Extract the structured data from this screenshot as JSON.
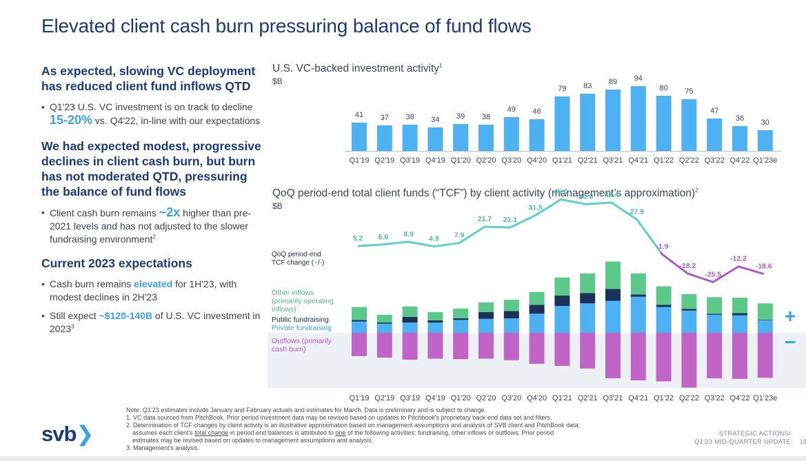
{
  "page": {
    "title": "Elevated client cash burn pressuring balance of fund flows"
  },
  "left": {
    "section1_heading": "As expected, slowing VC deployment has reduced client fund inflows QTD",
    "section1_bullet_a": "Q1'23 U.S. VC investment is on track to decline ",
    "section1_bullet_em": "15-20%",
    "section1_bullet_b": " vs. Q4'22, in-line with our expectations",
    "section2_heading": "We had expected modest, progressive declines in client cash burn, but burn has not moderated QTD, pressuring the balance of fund flows",
    "section2_bullet_a": "Client cash burn remains ",
    "section2_bullet_em": "~2x",
    "section2_bullet_b": " higher than pre-2021 levels and has not adjusted to the slower fundraising environment",
    "section2_bullet_sup": "2",
    "section3_heading": "Current 2023 expectations",
    "section3_bullet1_a": "Cash burn remains ",
    "section3_bullet1_em": "elevated",
    "section3_bullet1_b": " for 1H'23, with modest declines in 2H'23",
    "section3_bullet2_a": "Still expect ",
    "section3_bullet2_em": "~$120-140B",
    "section3_bullet2_b": " of U.S. VC investment in 2023",
    "section3_bullet2_sup": "3"
  },
  "chart_data": [
    {
      "type": "bar",
      "title": "U.S. VC-backed investment activity",
      "title_sup": "1",
      "unit": "$B",
      "categories": [
        "Q1'19",
        "Q2'19",
        "Q3'19",
        "Q4'19",
        "Q1'20",
        "Q2'20",
        "Q3'20",
        "Q4'20",
        "Q1'21",
        "Q2'21",
        "Q3'21",
        "Q4'21",
        "Q1'22",
        "Q2'22",
        "Q3'22",
        "Q4'22",
        "Q1'23e"
      ],
      "values": [
        41,
        37,
        38,
        34,
        39,
        38,
        49,
        46,
        79,
        83,
        89,
        94,
        80,
        75,
        47,
        36,
        30
      ],
      "ylim": [
        0,
        100
      ],
      "color": "#4db1f2"
    },
    {
      "type": "bar",
      "stacked": true,
      "title": "QoQ period-end total client funds (“TCF”) by client activity (management’s approximation)",
      "title_sup": "2",
      "unit": "$B",
      "categories": [
        "Q1'19",
        "Q2'19",
        "Q3'19",
        "Q4'19",
        "Q1'20",
        "Q2'20",
        "Q3'20",
        "Q4'20",
        "Q1'21",
        "Q2'21",
        "Q3'21",
        "Q4'21",
        "Q1'22",
        "Q2'22",
        "Q3'22",
        "Q4'22",
        "Q1'23e"
      ],
      "series": [
        {
          "name": "Private fundraising",
          "values": [
            22,
            18,
            20,
            20,
            25,
            27,
            28,
            37,
            52,
            57,
            62,
            70,
            50,
            43,
            35,
            34,
            24
          ],
          "color": "#4db1f2"
        },
        {
          "name": "Public fundraising",
          "values": [
            3,
            2,
            11,
            4,
            3,
            13,
            14,
            17,
            20,
            20,
            23,
            4,
            4,
            3,
            2,
            4,
            1
          ],
          "color": "#1b3157"
        },
        {
          "name": "Other inflows (primarily operating inflows)",
          "values": [
            25,
            15,
            20,
            16,
            19,
            19,
            22,
            25,
            35,
            38,
            53,
            41,
            36,
            29,
            32,
            30,
            32
          ],
          "color": "#5cc98a"
        },
        {
          "name": "Outflows (primarily cash burn)",
          "values": [
            -45,
            -48,
            -52,
            -50,
            -51,
            -50,
            -53,
            -60,
            -64,
            -69,
            -88,
            -92,
            -94,
            -106,
            -88,
            -89,
            -87
          ],
          "color": "#c065c7"
        }
      ],
      "line": {
        "name": "QoQ period-end TCF change (+/-)",
        "legend_prefix": "QoQ period-end TCF change (",
        "legend_plus": "+",
        "legend_sep": "/",
        "legend_minus": "-",
        "legend_suffix": ")",
        "values": [
          5.2,
          6.6,
          8.9,
          4.9,
          7.9,
          21.7,
          21.1,
          31.5,
          45.0,
          41.0,
          42.4,
          27.9,
          -1.9,
          -18.2,
          -25.5,
          -12.2,
          -18.6
        ],
        "labels": [
          "5.2",
          "6.6",
          "8.9",
          "4.9",
          "7.9",
          "21.7",
          "21.1",
          "31.5",
          "45.0",
          "41.0",
          "42.4",
          "27.9",
          "-1.9",
          "-18.2",
          "-25.5",
          "-12.2",
          "-18.6"
        ],
        "positive_color": "#5ccfcf",
        "negative_color": "#b05ac6"
      },
      "legend": {
        "other_inflows": "Other inflows (primarily operating inflows)",
        "public": "Public fundraising",
        "private": "Private fundraising",
        "outflows": "Outflows (primarily cash burn)",
        "plus": "+",
        "minus": "−"
      }
    }
  ],
  "footnotes": {
    "line1": "Note: Q1'23 estimates include January and February actuals and estimates for March. Data is preliminary and is subject to change.",
    "line2": "1. VC data sourced from PitchBook. Prior period investment data may be revised based on updates to Pitchbook's proprietary back-end data set and filters.",
    "line3": "2. Determination of TCF changes by client activity is an illustrative approximation based on management assumptions and analysis of SVB client and PitchBook data;",
    "line4a": "assumes each client's ",
    "line4u1": "total change",
    "line4b": " in period-end balances is attributed to ",
    "line4u2": "one",
    "line4c": " of the following activities: fundraising, other inflows or outflows. Prior period",
    "line5": "estimates may be revised based on updates to management assumptions and analysis.",
    "line6": "3. Management's analysis."
  },
  "footer": {
    "logo_text": "svb",
    "logo_chevron": "❯",
    "section_line1": "STRATEGIC ACTIONS/",
    "section_line2": "Q1'23 MID-QUARTER UPDATE",
    "page_number": "16"
  }
}
